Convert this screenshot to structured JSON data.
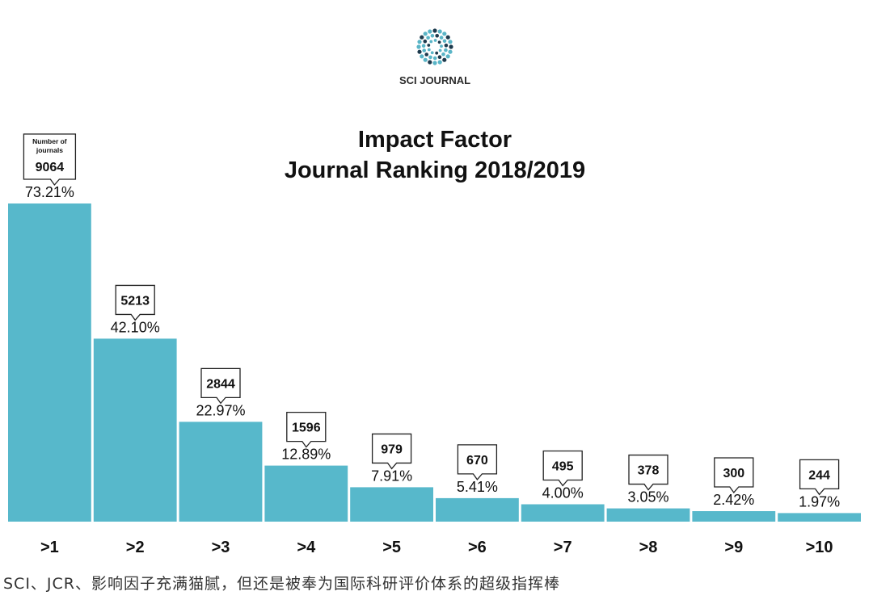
{
  "logo": {
    "text": "SCI JOURNAL",
    "dot_colors": [
      "#5ab5c7",
      "#1d3a4d"
    ]
  },
  "caption": "SCI、JCR、影响因子充满猫腻，但还是被奉为国际科研评价体系的超级指挥棒",
  "chart_data": {
    "type": "bar",
    "title": [
      "Impact Factor",
      "Journal Ranking 2018/2019"
    ],
    "categories": [
      ">1",
      ">2",
      ">3",
      ">4",
      ">5",
      ">6",
      ">7",
      ">8",
      ">9",
      ">10"
    ],
    "series": [
      {
        "values": [
          73.21,
          42.1,
          22.97,
          12.89,
          7.91,
          5.41,
          4.0,
          3.05,
          2.42,
          1.97
        ]
      }
    ],
    "value_labels": [
      "73.21%",
      "42.10%",
      "22.97%",
      "12.89%",
      "7.91%",
      "5.41%",
      "4.00%",
      "3.05%",
      "2.42%",
      "1.97%"
    ],
    "journal_counts": [
      9064,
      5213,
      2844,
      1596,
      979,
      670,
      495,
      378,
      300,
      244
    ],
    "count_caption": [
      "Number of",
      "journals"
    ],
    "ylim": [
      0,
      73.21
    ],
    "bar_color": "#57b8cb",
    "grid": false,
    "legend": "none"
  }
}
